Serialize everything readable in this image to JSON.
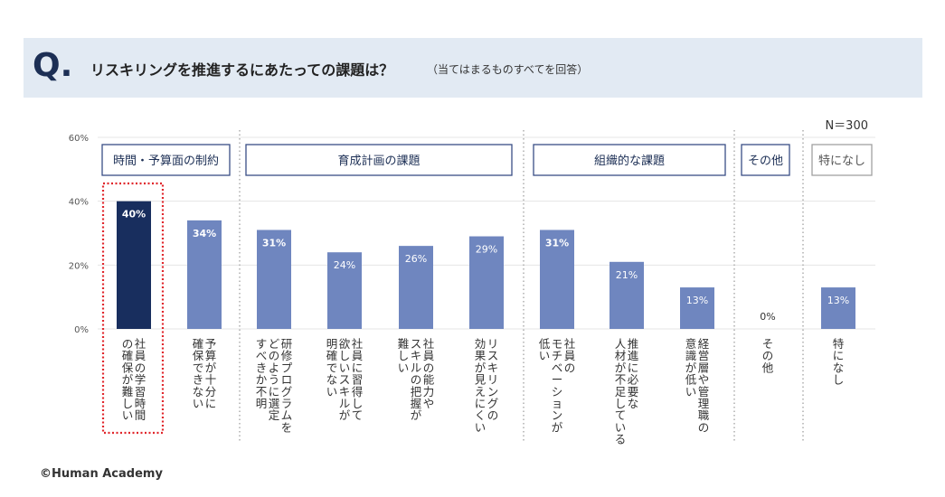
{
  "header": {
    "q": "Q.",
    "title": "リスキリングを推進するにあたっての課題は？",
    "note": "（当てはまるものすべてを回答）"
  },
  "footer": {
    "copyright": "©Human Academy"
  },
  "chart_data": {
    "type": "bar",
    "n_label": "N＝300",
    "ylim": [
      0,
      60
    ],
    "yticks": [
      0,
      20,
      40,
      60
    ],
    "ytick_labels": [
      "0%",
      "20%",
      "40%",
      "60%"
    ],
    "grid": true,
    "groups": [
      {
        "label": "時間・予算面の制約",
        "start": 0,
        "end": 1,
        "style": "primary"
      },
      {
        "label": "育成計画の課題",
        "start": 2,
        "end": 5,
        "style": "primary"
      },
      {
        "label": "組織的な課題",
        "start": 6,
        "end": 8,
        "style": "primary"
      },
      {
        "label": "その他",
        "start": 9,
        "end": 9,
        "style": "primary"
      },
      {
        "label": "特になし",
        "start": 10,
        "end": 10,
        "style": "muted"
      }
    ],
    "categories": [
      [
        "社員の学習時間",
        "の確保が難しい"
      ],
      [
        "予算が十分に",
        "確保できない"
      ],
      [
        "研修プログラムを",
        "どのように選定",
        "すべきか不明"
      ],
      [
        "社員に習得して",
        "欲しいスキルが",
        "明確でない"
      ],
      [
        "社員の能力や",
        "スキルの把握が",
        "難しい"
      ],
      [
        "リスキリングの",
        "効果が見えにくい"
      ],
      [
        "社員の",
        "モチベーションが",
        "低い"
      ],
      [
        "推進に必要な",
        "人材が不足している"
      ],
      [
        "経営層や管理職の",
        "意識が低い"
      ],
      [
        "その他"
      ],
      [
        "特になし"
      ]
    ],
    "values": [
      40,
      34,
      31,
      24,
      26,
      29,
      31,
      21,
      13,
      0,
      13
    ],
    "value_labels": [
      "40%",
      "34%",
      "31%",
      "24%",
      "26%",
      "29%",
      "31%",
      "21%",
      "13%",
      "0%",
      "13%"
    ],
    "bold_labels": [
      true,
      true,
      true,
      false,
      false,
      false,
      true,
      false,
      false,
      false,
      false
    ],
    "highlight_index": 0,
    "colors": {
      "bar": "#6f86bf",
      "highlight": "#182e5e",
      "group_border": "#3a4f86",
      "muted_border": "#a0a0a0",
      "highlight_outline": "#e0262b",
      "grid": "#e4e4e4",
      "divider": "#a8a8a8"
    }
  }
}
